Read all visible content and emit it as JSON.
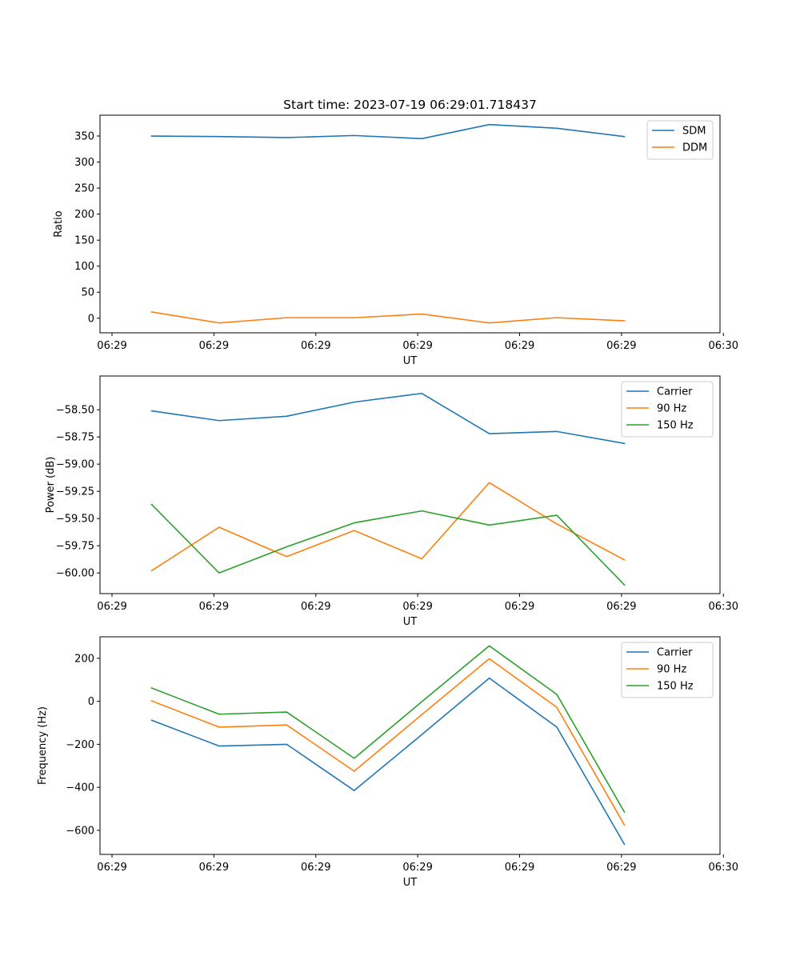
{
  "chart_data": [
    {
      "type": "line",
      "title": "Start time: 2023-07-19 06:29:01.718437",
      "xlabel": "UT",
      "ylabel": "Ratio",
      "x_ticks": [
        "06:29",
        "06:29",
        "06:29",
        "06:29",
        "06:29",
        "06:29",
        "06:30"
      ],
      "xlim": [
        0,
        1
      ],
      "ylim": [
        -28,
        390
      ],
      "y_ticks": [
        0,
        50,
        100,
        150,
        200,
        250,
        300,
        350
      ],
      "y_tick_labels": [
        "0",
        "50",
        "100",
        "150",
        "200",
        "250",
        "300",
        "350"
      ],
      "x": [
        0.0832,
        0.1921,
        0.3011,
        0.41,
        0.519,
        0.6279,
        0.7368,
        0.8458
      ],
      "legend_position": "top-right",
      "series": [
        {
          "name": "SDM",
          "color": "#1f77b4",
          "values": [
            350,
            349,
            347,
            351,
            345,
            372,
            365,
            349
          ]
        },
        {
          "name": "DDM",
          "color": "#ff7f0e",
          "values": [
            12,
            -9,
            1,
            1,
            8,
            -9,
            1,
            -5
          ]
        }
      ]
    },
    {
      "type": "line",
      "title": "",
      "xlabel": "UT",
      "ylabel": "Power (dB)",
      "x_ticks": [
        "06:29",
        "06:29",
        "06:29",
        "06:29",
        "06:29",
        "06:29",
        "06:30"
      ],
      "xlim": [
        0,
        1
      ],
      "ylim": [
        -60.19,
        -58.19
      ],
      "y_ticks": [
        -60.0,
        -59.75,
        -59.5,
        -59.25,
        -59.0,
        -58.75,
        -58.5
      ],
      "y_tick_labels": [
        "−60.00",
        "−59.75",
        "−59.50",
        "−59.25",
        "−59.00",
        "−58.75",
        "−58.50"
      ],
      "x": [
        0.0832,
        0.1921,
        0.3011,
        0.41,
        0.519,
        0.6279,
        0.7368,
        0.8458
      ],
      "legend_position": "top-right",
      "series": [
        {
          "name": "Carrier",
          "color": "#1f77b4",
          "values": [
            -58.51,
            -58.6,
            -58.56,
            -58.43,
            -58.35,
            -58.72,
            -58.7,
            -58.81
          ]
        },
        {
          "name": "90 Hz",
          "color": "#ff7f0e",
          "values": [
            -59.98,
            -59.58,
            -59.85,
            -59.61,
            -59.87,
            -59.17,
            -59.55,
            -59.88
          ]
        },
        {
          "name": "150 Hz",
          "color": "#2ca02c",
          "values": [
            -59.37,
            -60.0,
            -59.76,
            -59.54,
            -59.43,
            -59.56,
            -59.47,
            -60.11
          ]
        }
      ]
    },
    {
      "type": "line",
      "title": "",
      "xlabel": "UT",
      "ylabel": "Frequency (Hz)",
      "x_ticks": [
        "06:29",
        "06:29",
        "06:29",
        "06:29",
        "06:29",
        "06:29",
        "06:30"
      ],
      "xlim": [
        0,
        1
      ],
      "ylim": [
        -712,
        300
      ],
      "y_ticks": [
        -600,
        -400,
        -200,
        0,
        200
      ],
      "y_tick_labels": [
        "−600",
        "−400",
        "−200",
        "0",
        "200"
      ],
      "x": [
        0.0832,
        0.1921,
        0.3011,
        0.41,
        0.519,
        0.6279,
        0.7368,
        0.8458
      ],
      "legend_position": "top-right",
      "series": [
        {
          "name": "Carrier",
          "color": "#1f77b4",
          "values": [
            -88,
            -208,
            -200,
            -415,
            -155,
            108,
            -120,
            -665
          ]
        },
        {
          "name": "90 Hz",
          "color": "#ff7f0e",
          "values": [
            2,
            -120,
            -110,
            -325,
            -62,
            198,
            -28,
            -575
          ]
        },
        {
          "name": "150 Hz",
          "color": "#2ca02c",
          "values": [
            62,
            -60,
            -50,
            -265,
            -2,
            258,
            32,
            -515
          ]
        }
      ]
    }
  ]
}
